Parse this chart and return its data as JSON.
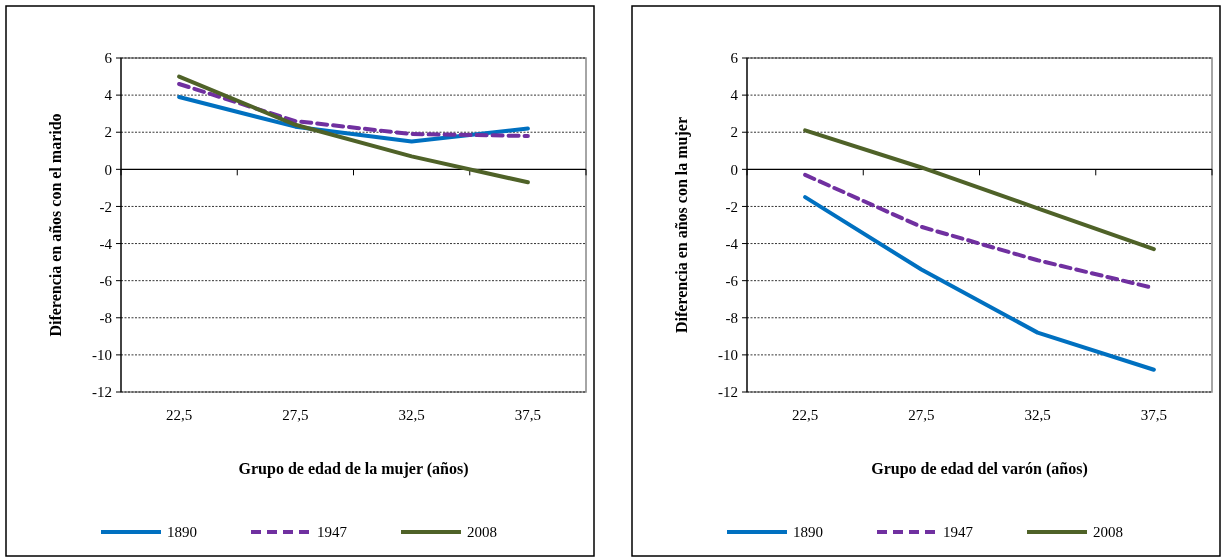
{
  "chart_data": [
    {
      "type": "line",
      "xlabel": "Grupo de edad de la mujer (años)",
      "ylabel": "Diferencia en años con el marido",
      "categories": [
        "22,5",
        "27,5",
        "32,5",
        "37,5"
      ],
      "ylim": [
        -12,
        6
      ],
      "yticks": [
        -12,
        -10,
        -8,
        -6,
        -4,
        -2,
        0,
        2,
        4,
        6
      ],
      "grid": "y",
      "legend": "bottom",
      "marker": "none",
      "series": [
        {
          "name": "1890",
          "color": "#0070c0",
          "line_style": "solid",
          "values": [
            3.9,
            2.3,
            1.5,
            2.2
          ]
        },
        {
          "name": "1947",
          "color": "#7030a0",
          "line_style": "dashed",
          "values": [
            4.6,
            2.6,
            1.9,
            1.8
          ]
        },
        {
          "name": "2008",
          "color": "#4f6228",
          "line_style": "solid",
          "values": [
            5.0,
            2.4,
            0.7,
            -0.7
          ]
        }
      ]
    },
    {
      "type": "line",
      "xlabel": "Grupo de edad del varón (años)",
      "ylabel": "Diferencia en años con la mujer",
      "categories": [
        "22,5",
        "27,5",
        "32,5",
        "37,5"
      ],
      "ylim": [
        -12,
        6
      ],
      "yticks": [
        -12,
        -10,
        -8,
        -6,
        -4,
        -2,
        0,
        2,
        4,
        6
      ],
      "grid": "y",
      "legend": "bottom",
      "marker": "none",
      "series": [
        {
          "name": "1890",
          "color": "#0070c0",
          "line_style": "solid",
          "values": [
            -1.5,
            -5.4,
            -8.8,
            -10.8
          ]
        },
        {
          "name": "1947",
          "color": "#7030a0",
          "line_style": "dashed",
          "values": [
            -0.3,
            -3.1,
            -4.9,
            -6.4
          ]
        },
        {
          "name": "2008",
          "color": "#4f6228",
          "line_style": "solid",
          "values": [
            2.1,
            0.1,
            -2.1,
            -4.3
          ]
        }
      ]
    }
  ]
}
